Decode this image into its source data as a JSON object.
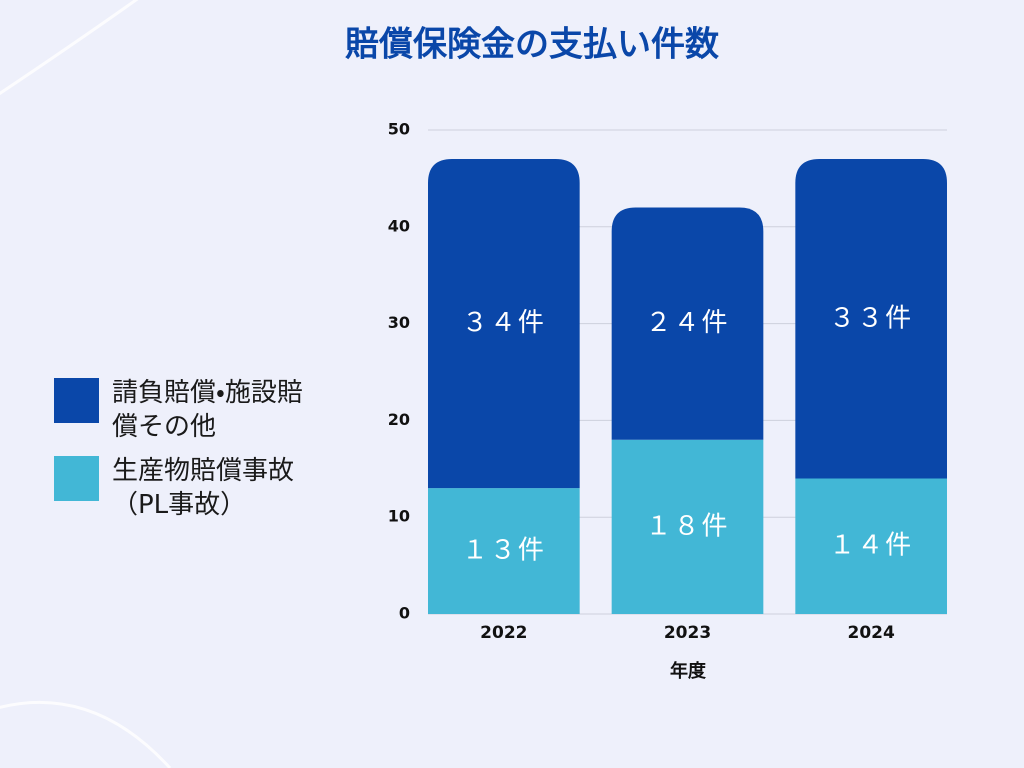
{
  "chart_data": {
    "type": "stacked_bar",
    "title": "賠償保険金の支払い件数",
    "categories": [
      "2022",
      "2023",
      "2024"
    ],
    "x_label": "年度",
    "series": [
      {
        "name": "生産物賠償事故（PL事故）",
        "color": "#42b7d6",
        "values": [
          13,
          18,
          14
        ],
        "value_labels": [
          "１３件",
          "１８件",
          "１４件"
        ]
      },
      {
        "name": "請負賠償・施設賠償その他",
        "color": "#0a47a9",
        "values": [
          34,
          24,
          33
        ],
        "value_labels": [
          "３４件",
          "２４件",
          "３３件"
        ]
      }
    ],
    "ylim": [
      0,
      50
    ],
    "yticks": [
      0,
      10,
      20,
      30,
      40,
      50
    ],
    "grid": true
  }
}
